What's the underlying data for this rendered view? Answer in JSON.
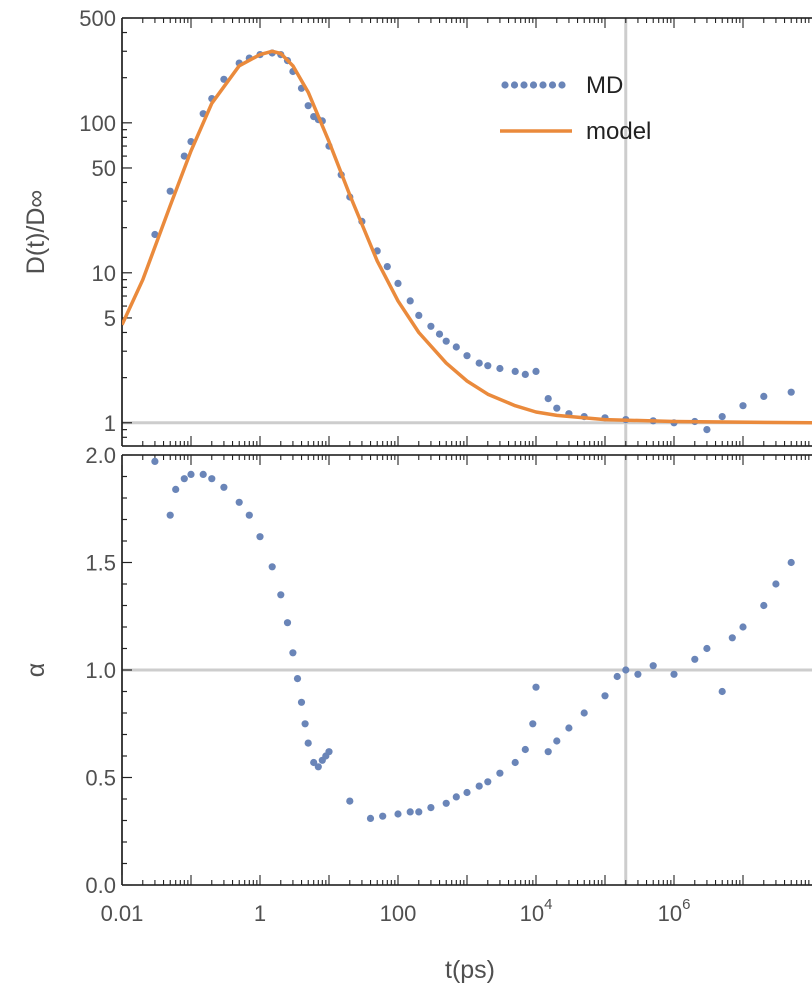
{
  "chart_data": [
    {
      "type": "scatter",
      "panel": "top",
      "ylabel": "D(t)/D∞",
      "xscale": "log",
      "yscale": "log",
      "xlim": [
        0.01,
        100000000
      ],
      "ylim": [
        0.7,
        500
      ],
      "yticks": [
        {
          "value": 1,
          "label": "1"
        },
        {
          "value": 5,
          "label": "5"
        },
        {
          "value": 10,
          "label": "10"
        },
        {
          "value": 50,
          "label": "50"
        },
        {
          "value": 100,
          "label": "100"
        },
        {
          "value": 500,
          "label": "500"
        }
      ],
      "reference_line_y": 1,
      "reference_line_x": 200000,
      "legend": {
        "position": "top-right",
        "entries": [
          "MD",
          "model"
        ]
      },
      "series": [
        {
          "name": "MD",
          "style": "points",
          "color": "#6a85b8",
          "points": [
            [
              0.03,
              18
            ],
            [
              0.05,
              35
            ],
            [
              0.08,
              60
            ],
            [
              0.1,
              75
            ],
            [
              0.15,
              115
            ],
            [
              0.2,
              145
            ],
            [
              0.3,
              195
            ],
            [
              0.5,
              250
            ],
            [
              0.7,
              270
            ],
            [
              1,
              285
            ],
            [
              1.5,
              292
            ],
            [
              2,
              285
            ],
            [
              2.5,
              260
            ],
            [
              3,
              220
            ],
            [
              4,
              170
            ],
            [
              5,
              130
            ],
            [
              6,
              110
            ],
            [
              7,
              105
            ],
            [
              8,
              103
            ],
            [
              10,
              70
            ],
            [
              15,
              45
            ],
            [
              20,
              32
            ],
            [
              30,
              22
            ],
            [
              50,
              14
            ],
            [
              70,
              11
            ],
            [
              100,
              8.5
            ],
            [
              150,
              6.5
            ],
            [
              200,
              5.2
            ],
            [
              300,
              4.4
            ],
            [
              400,
              3.9
            ],
            [
              500,
              3.5
            ],
            [
              700,
              3.2
            ],
            [
              1000,
              2.8
            ],
            [
              1500,
              2.5
            ],
            [
              2000,
              2.4
            ],
            [
              3000,
              2.3
            ],
            [
              5000,
              2.2
            ],
            [
              7000,
              2.1
            ],
            [
              10000,
              2.2
            ],
            [
              15000,
              1.45
            ],
            [
              20000,
              1.25
            ],
            [
              30000,
              1.15
            ],
            [
              50000,
              1.1
            ],
            [
              100000,
              1.08
            ],
            [
              200000,
              1.05
            ],
            [
              500000,
              1.03
            ],
            [
              1000000,
              1.0
            ],
            [
              2000000,
              1.02
            ],
            [
              3000000,
              0.9
            ],
            [
              5000000,
              1.1
            ],
            [
              10000000,
              1.3
            ],
            [
              20000000,
              1.5
            ],
            [
              50000000,
              1.6
            ]
          ]
        },
        {
          "name": "model",
          "style": "line",
          "color": "#ea8a3c",
          "points": [
            [
              0.01,
              4.5
            ],
            [
              0.02,
              9
            ],
            [
              0.05,
              28
            ],
            [
              0.1,
              65
            ],
            [
              0.2,
              135
            ],
            [
              0.5,
              240
            ],
            [
              1,
              285
            ],
            [
              1.5,
              300
            ],
            [
              2,
              290
            ],
            [
              3,
              240
            ],
            [
              5,
              160
            ],
            [
              10,
              75
            ],
            [
              20,
              33
            ],
            [
              50,
              12
            ],
            [
              100,
              6.5
            ],
            [
              200,
              4
            ],
            [
              500,
              2.5
            ],
            [
              1000,
              1.9
            ],
            [
              2000,
              1.55
            ],
            [
              5000,
              1.3
            ],
            [
              10000,
              1.18
            ],
            [
              20000,
              1.12
            ],
            [
              100000,
              1.05
            ],
            [
              1000000,
              1.02
            ],
            [
              100000000,
              1.0
            ]
          ]
        }
      ]
    },
    {
      "type": "scatter",
      "panel": "bottom",
      "xlabel": "t(ps)",
      "ylabel": "α",
      "xscale": "log",
      "xlim": [
        0.01,
        100000000
      ],
      "ylim": [
        0,
        2
      ],
      "xticks": [
        {
          "value": 0.01,
          "label": "0.01"
        },
        {
          "value": 1,
          "label": "1"
        },
        {
          "value": 100,
          "label": "100"
        },
        {
          "value": 10000,
          "base": "10",
          "exp": "4"
        },
        {
          "value": 1000000,
          "base": "10",
          "exp": "6"
        }
      ],
      "yticks": [
        {
          "value": 0,
          "label": "0.0"
        },
        {
          "value": 0.5,
          "label": "0.5"
        },
        {
          "value": 1,
          "label": "1.0"
        },
        {
          "value": 1.5,
          "label": "1.5"
        },
        {
          "value": 2,
          "label": "2.0"
        }
      ],
      "reference_line_y": 1,
      "reference_line_x": 200000,
      "series": [
        {
          "name": "MD",
          "style": "points",
          "color": "#6a85b8",
          "points": [
            [
              0.03,
              1.97
            ],
            [
              0.05,
              1.72
            ],
            [
              0.06,
              1.84
            ],
            [
              0.08,
              1.89
            ],
            [
              0.1,
              1.91
            ],
            [
              0.15,
              1.91
            ],
            [
              0.2,
              1.89
            ],
            [
              0.3,
              1.85
            ],
            [
              0.5,
              1.78
            ],
            [
              0.7,
              1.72
            ],
            [
              1,
              1.62
            ],
            [
              1.5,
              1.48
            ],
            [
              2,
              1.35
            ],
            [
              2.5,
              1.22
            ],
            [
              3,
              1.08
            ],
            [
              3.5,
              0.96
            ],
            [
              4,
              0.85
            ],
            [
              4.5,
              0.75
            ],
            [
              5,
              0.66
            ],
            [
              6,
              0.57
            ],
            [
              7,
              0.55
            ],
            [
              8,
              0.58
            ],
            [
              9,
              0.6
            ],
            [
              10,
              0.62
            ],
            [
              20,
              0.39
            ],
            [
              40,
              0.31
            ],
            [
              60,
              0.32
            ],
            [
              100,
              0.33
            ],
            [
              150,
              0.34
            ],
            [
              200,
              0.34
            ],
            [
              300,
              0.36
            ],
            [
              500,
              0.38
            ],
            [
              700,
              0.41
            ],
            [
              1000,
              0.43
            ],
            [
              1500,
              0.46
            ],
            [
              2000,
              0.48
            ],
            [
              3000,
              0.52
            ],
            [
              5000,
              0.57
            ],
            [
              7000,
              0.63
            ],
            [
              9000,
              0.75
            ],
            [
              10000,
              0.92
            ],
            [
              15000,
              0.62
            ],
            [
              20000,
              0.67
            ],
            [
              30000,
              0.73
            ],
            [
              50000,
              0.8
            ],
            [
              100000,
              0.88
            ],
            [
              150000,
              0.97
            ],
            [
              200000,
              1.0
            ],
            [
              300000,
              0.98
            ],
            [
              500000,
              1.02
            ],
            [
              1000000,
              0.98
            ],
            [
              2000000,
              1.05
            ],
            [
              3000000,
              1.1
            ],
            [
              5000000,
              0.9
            ],
            [
              7000000,
              1.15
            ],
            [
              10000000,
              1.2
            ],
            [
              20000000,
              1.3
            ],
            [
              30000000,
              1.4
            ],
            [
              50000000,
              1.5
            ]
          ]
        }
      ]
    }
  ]
}
